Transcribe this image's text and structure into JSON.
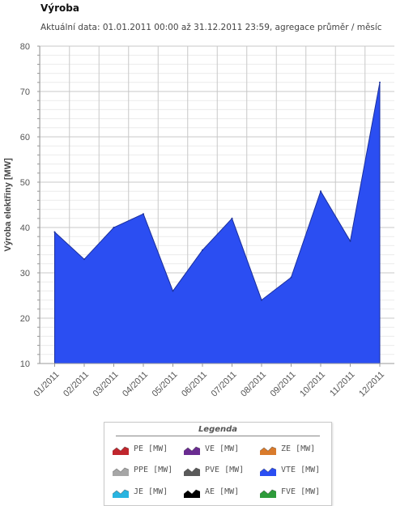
{
  "header": {
    "title": "Výroba",
    "subtitle": "Aktuální data: 01.01.2011 00:00 až 31.12.2011 23:59, agregace průměr / měsíc"
  },
  "chart_data": {
    "type": "area",
    "ylabel": "Výroba elektřiny [MW]",
    "xlabel": "",
    "ylim": [
      10,
      80
    ],
    "yticks": [
      10,
      20,
      30,
      40,
      50,
      60,
      70,
      80
    ],
    "grid": true,
    "categories": [
      "01/2011",
      "02/2011",
      "03/2011",
      "04/2011",
      "05/2011",
      "06/2011",
      "07/2011",
      "08/2011",
      "09/2011",
      "10/2011",
      "11/2011",
      "12/2011"
    ],
    "series": [
      {
        "name": "VTE [MW]",
        "color": "#2b4ef2",
        "values": [
          39,
          33,
          40,
          43,
          26,
          35,
          42,
          24,
          29,
          48,
          37,
          72
        ]
      }
    ]
  },
  "legend": {
    "title": "Legenda",
    "items": [
      {
        "label": "PE [MW]",
        "color": "#c0262d"
      },
      {
        "label": "VE [MW]",
        "color": "#6a2c91"
      },
      {
        "label": "ZE [MW]",
        "color": "#d97b2c"
      },
      {
        "label": "PPE [MW]",
        "color": "#a6a6a6"
      },
      {
        "label": "PVE [MW]",
        "color": "#5a5a5a"
      },
      {
        "label": "VTE [MW]",
        "color": "#2b4ef2"
      },
      {
        "label": "JE [MW]",
        "color": "#2ab4e0"
      },
      {
        "label": "AE [MW]",
        "color": "#000000"
      },
      {
        "label": "FVE [MW]",
        "color": "#2e9b3a"
      }
    ]
  }
}
